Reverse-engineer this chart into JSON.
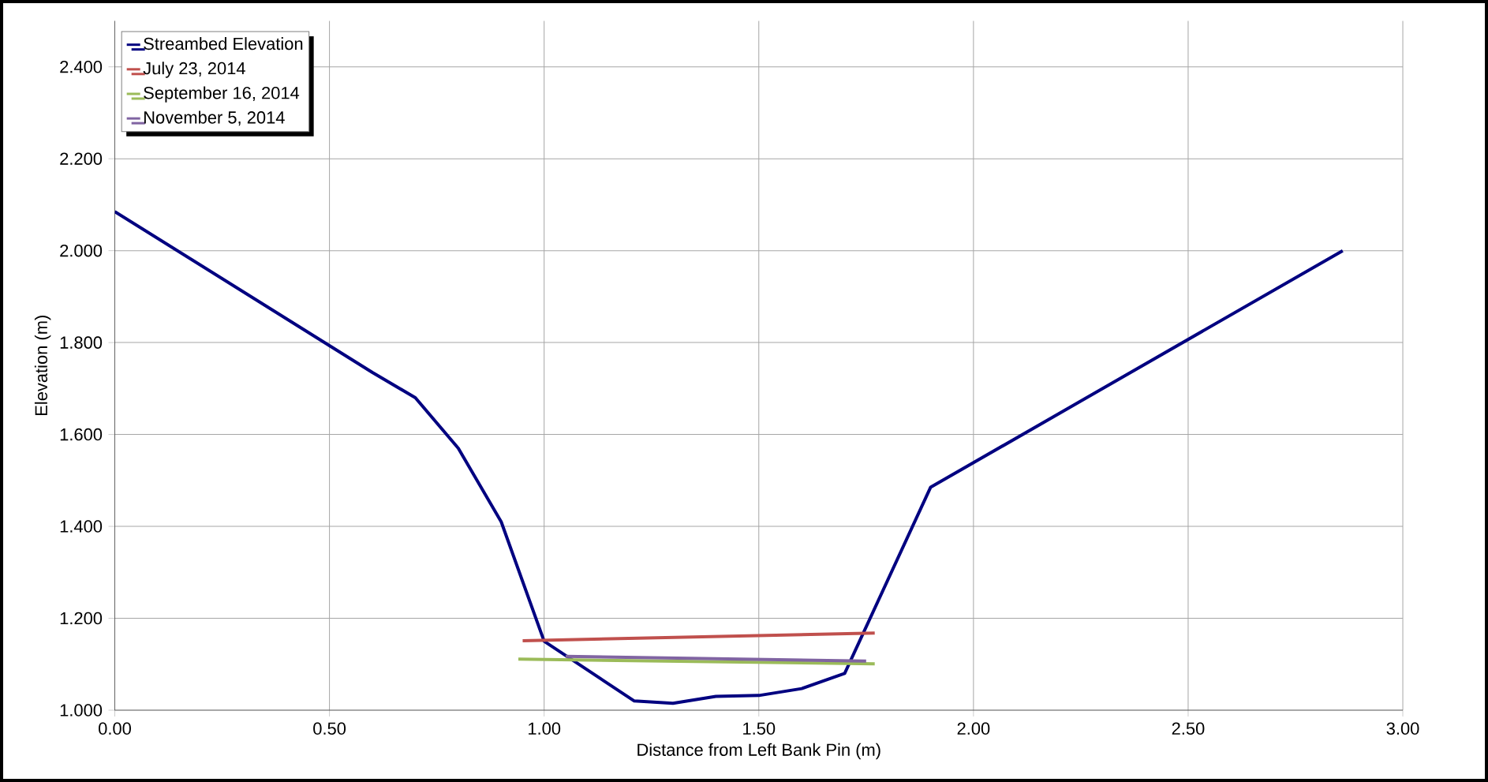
{
  "chart_data": {
    "type": "line",
    "xlabel": "Distance from Left Bank Pin (m)",
    "ylabel": "Elevation (m)",
    "xlim": [
      0,
      3
    ],
    "ylim": [
      1.0,
      2.5
    ],
    "xticks": [
      {
        "value": 0,
        "label": "0.00"
      },
      {
        "value": 0.5,
        "label": "0.50"
      },
      {
        "value": 1,
        "label": "1.00"
      },
      {
        "value": 1.5,
        "label": "1.50"
      },
      {
        "value": 2,
        "label": "2.00"
      },
      {
        "value": 2.5,
        "label": "2.50"
      },
      {
        "value": 3,
        "label": "3.00"
      }
    ],
    "yticks": [
      {
        "value": 1.0,
        "label": "1.000"
      },
      {
        "value": 1.2,
        "label": "1.200"
      },
      {
        "value": 1.4,
        "label": "1.400"
      },
      {
        "value": 1.6,
        "label": "1.600"
      },
      {
        "value": 1.8,
        "label": "1.800"
      },
      {
        "value": 2.0,
        "label": "2.000"
      },
      {
        "value": 2.2,
        "label": "2.200"
      },
      {
        "value": 2.4,
        "label": "2.400"
      }
    ],
    "grid": true,
    "legend": "top left",
    "marker": "none",
    "line_style": "solid",
    "series": [
      {
        "name": "Streambed Elevation",
        "color": "#000080",
        "x": [
          0,
          0.6,
          0.7,
          0.8,
          0.9,
          1.0,
          1.21,
          1.3,
          1.4,
          1.5,
          1.6,
          1.7,
          1.9,
          2.86
        ],
        "values": [
          2.085,
          1.735,
          1.68,
          1.57,
          1.41,
          1.15,
          1.02,
          1.015,
          1.03,
          1.032,
          1.047,
          1.08,
          1.485,
          2.0
        ]
      },
      {
        "name": "July 23, 2014",
        "color": "#c0504d",
        "x": [
          0.95,
          1.77
        ],
        "values": [
          1.151,
          1.168
        ]
      },
      {
        "name": "September 16, 2014",
        "color": "#9bbb59",
        "x": [
          0.94,
          1.77
        ],
        "values": [
          1.111,
          1.101
        ]
      },
      {
        "name": "November 5, 2014",
        "color": "#8064a2",
        "x": [
          1.05,
          1.75
        ],
        "values": [
          1.117,
          1.107
        ]
      }
    ]
  }
}
